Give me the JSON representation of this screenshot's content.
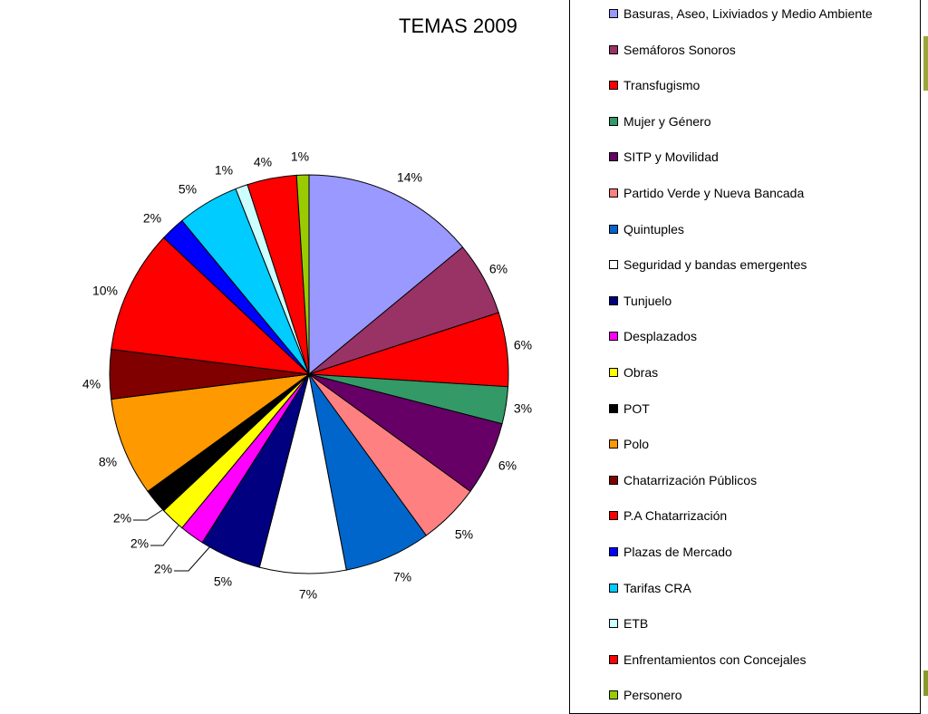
{
  "chart_data": {
    "type": "pie",
    "title": "TEMAS 2009",
    "legend_position": "right",
    "slices": [
      {
        "name": "Basuras, Aseo, Lixiviados y Medio Ambiente",
        "value": 14,
        "label": "14%",
        "color": "#9999ff"
      },
      {
        "name": "Semáforos Sonoros",
        "value": 6,
        "label": "6%",
        "color": "#993366"
      },
      {
        "name": "Transfugismo",
        "value": 6,
        "label": "6%",
        "color": "#ff0000"
      },
      {
        "name": "Mujer y Género",
        "value": 3,
        "label": "3%",
        "color": "#339966"
      },
      {
        "name": "SITP y Movilidad",
        "value": 6,
        "label": "6%",
        "color": "#660066"
      },
      {
        "name": "Partido Verde y Nueva Bancada",
        "value": 5,
        "label": "5%",
        "color": "#ff8080"
      },
      {
        "name": "Quintuples",
        "value": 7,
        "label": "7%",
        "color": "#0066cc"
      },
      {
        "name": "Seguridad y bandas emergentes",
        "value": 7,
        "label": "7%",
        "color": "#ffffff"
      },
      {
        "name": "Tunjuelo",
        "value": 5,
        "label": "5%",
        "color": "#000080"
      },
      {
        "name": "Desplazados",
        "value": 2,
        "label": "2%",
        "color": "#ff00ff"
      },
      {
        "name": "Obras",
        "value": 2,
        "label": "2%",
        "color": "#ffff00"
      },
      {
        "name": "POT",
        "value": 2,
        "label": "2%",
        "color": "#000000"
      },
      {
        "name": "Polo",
        "value": 8,
        "label": "8%",
        "color": "#ff9900"
      },
      {
        "name": "Chatarrización Públicos",
        "value": 4,
        "label": "4%",
        "color": "#800000"
      },
      {
        "name": "P.A Chatarrización",
        "value": 10,
        "label": "10%",
        "color": "#ff0000"
      },
      {
        "name": "Plazas de Mercado",
        "value": 2,
        "label": "2%",
        "color": "#0000ff"
      },
      {
        "name": "Tarifas CRA",
        "value": 5,
        "label": "5%",
        "color": "#00ccff"
      },
      {
        "name": "ETB",
        "value": 1,
        "label": "1%",
        "color": "#ccffff"
      },
      {
        "name": "Enfrentamientos con Concejales",
        "value": 4,
        "label": "4%",
        "color": "#ff0000"
      },
      {
        "name": "Personero",
        "value": 1,
        "label": "1%",
        "color": "#99cc00"
      }
    ]
  }
}
